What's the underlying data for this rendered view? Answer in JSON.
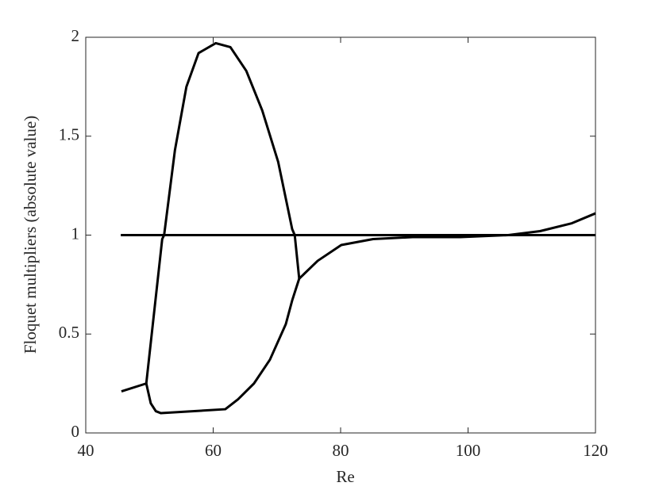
{
  "chart_data": {
    "type": "line",
    "xlabel": "Re",
    "ylabel": "Floquet multipliers (absolute value)",
    "xlim": [
      40,
      120
    ],
    "xticks": [
      40,
      60,
      80,
      100,
      120
    ],
    "ylim": [
      0,
      2
    ],
    "yticks": [
      0,
      0.5,
      1,
      1.5,
      2
    ],
    "series": [
      {
        "color": "#000000",
        "x": [
          45.5,
          120
        ],
        "values": [
          1,
          1
        ]
      },
      {
        "color": "#000000",
        "x": [
          45.6,
          49.5,
          52.0,
          52.3,
          54.0,
          55.8,
          57.7,
          60.4,
          62.7,
          65.2,
          67.7,
          70.2,
          72.4,
          72.8,
          73.5,
          76.4,
          80.1,
          85.1,
          91.3,
          98.8,
          106.3,
          111.3,
          116.3,
          120
        ],
        "values": [
          0.21,
          0.25,
          0.98,
          1.0,
          1.43,
          1.75,
          1.92,
          1.97,
          1.95,
          1.83,
          1.63,
          1.37,
          1.03,
          1.0,
          0.78,
          0.87,
          0.95,
          0.98,
          0.99,
          0.99,
          1.0,
          1.02,
          1.06,
          1.11
        ]
      },
      {
        "color": "#000000",
        "x": [
          49.5,
          50.2,
          51.0,
          51.8,
          61.9,
          63.9,
          66.4,
          68.9,
          71.4,
          72.4,
          73.5
        ],
        "values": [
          0.25,
          0.15,
          0.11,
          0.1,
          0.12,
          0.17,
          0.25,
          0.37,
          0.55,
          0.67,
          0.78
        ]
      }
    ]
  }
}
